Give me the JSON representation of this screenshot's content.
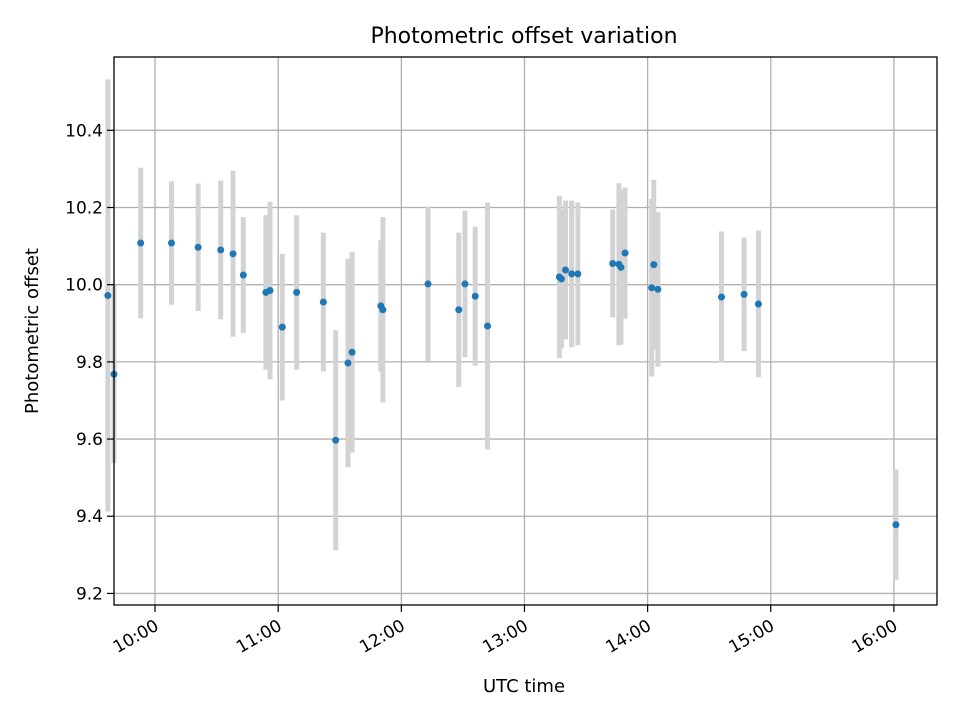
{
  "chart_data": {
    "type": "scatter",
    "title": "Photometric offset variation",
    "xlabel": "UTC time",
    "ylabel": "Photometric offset",
    "xlim": [
      "09:40",
      "16:21"
    ],
    "ylim": [
      9.17,
      10.59
    ],
    "x_ticks": [
      "10:00",
      "11:00",
      "12:00",
      "13:00",
      "14:00",
      "15:00",
      "16:00"
    ],
    "y_ticks": [
      "9.2",
      "9.4",
      "9.6",
      "9.8",
      "10.0",
      "10.2",
      "10.4"
    ],
    "grid": true,
    "legend": "none",
    "colors": {
      "marker": "#1f77b4",
      "errorbar": "#d3d3d3",
      "grid": "#b0b0b0"
    },
    "points": [
      {
        "t": "09:37",
        "y": 9.972,
        "yerr": 0.56
      },
      {
        "t": "09:40",
        "y": 9.768,
        "yerr": 0.23
      },
      {
        "t": "09:53",
        "y": 10.108,
        "yerr": 0.195
      },
      {
        "t": "10:08",
        "y": 10.108,
        "yerr": 0.16
      },
      {
        "t": "10:21",
        "y": 10.097,
        "yerr": 0.165
      },
      {
        "t": "10:32",
        "y": 10.09,
        "yerr": 0.18
      },
      {
        "t": "10:38",
        "y": 10.08,
        "yerr": 0.215
      },
      {
        "t": "10:43",
        "y": 10.025,
        "yerr": 0.15
      },
      {
        "t": "10:54",
        "y": 9.98,
        "yerr": 0.2
      },
      {
        "t": "10:56",
        "y": 9.985,
        "yerr": 0.23
      },
      {
        "t": "11:02",
        "y": 9.89,
        "yerr": 0.19
      },
      {
        "t": "11:09",
        "y": 9.98,
        "yerr": 0.2
      },
      {
        "t": "11:22",
        "y": 9.955,
        "yerr": 0.18
      },
      {
        "t": "11:28",
        "y": 9.597,
        "yerr": 0.285
      },
      {
        "t": "11:34",
        "y": 9.797,
        "yerr": 0.27
      },
      {
        "t": "11:36",
        "y": 9.825,
        "yerr": 0.26
      },
      {
        "t": "11:50",
        "y": 9.945,
        "yerr": 0.17
      },
      {
        "t": "11:51",
        "y": 9.935,
        "yerr": 0.24
      },
      {
        "t": "12:13",
        "y": 10.002,
        "yerr": 0.2
      },
      {
        "t": "12:28",
        "y": 9.935,
        "yerr": 0.2
      },
      {
        "t": "12:31",
        "y": 10.002,
        "yerr": 0.19
      },
      {
        "t": "12:36",
        "y": 9.97,
        "yerr": 0.18
      },
      {
        "t": "12:42",
        "y": 9.893,
        "yerr": 0.32
      },
      {
        "t": "13:17",
        "y": 10.02,
        "yerr": 0.21
      },
      {
        "t": "13:18",
        "y": 10.015,
        "yerr": 0.18
      },
      {
        "t": "13:20",
        "y": 10.038,
        "yerr": 0.18
      },
      {
        "t": "13:23",
        "y": 10.028,
        "yerr": 0.19
      },
      {
        "t": "13:26",
        "y": 10.028,
        "yerr": 0.185
      },
      {
        "t": "13:43",
        "y": 10.055,
        "yerr": 0.14
      },
      {
        "t": "13:46",
        "y": 10.053,
        "yerr": 0.21
      },
      {
        "t": "13:47",
        "y": 10.045,
        "yerr": 0.2
      },
      {
        "t": "13:49",
        "y": 10.082,
        "yerr": 0.17
      },
      {
        "t": "14:02",
        "y": 9.992,
        "yerr": 0.23
      },
      {
        "t": "14:03",
        "y": 10.052,
        "yerr": 0.22
      },
      {
        "t": "14:05",
        "y": 9.988,
        "yerr": 0.2
      },
      {
        "t": "14:36",
        "y": 9.968,
        "yerr": 0.17
      },
      {
        "t": "14:47",
        "y": 9.975,
        "yerr": 0.147
      },
      {
        "t": "14:54",
        "y": 9.95,
        "yerr": 0.19
      },
      {
        "t": "16:01",
        "y": 9.378,
        "yerr": 0.143
      }
    ]
  }
}
